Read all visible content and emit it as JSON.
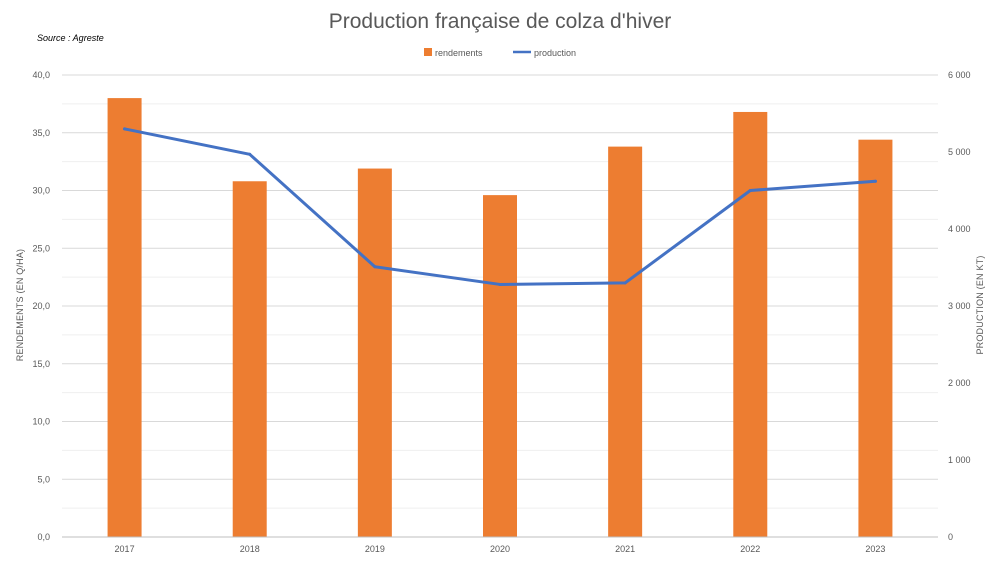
{
  "chart_data": {
    "type": "bar",
    "title": "Production française de colza d'hiver",
    "source_note": "Source : Agreste",
    "categories": [
      "2017",
      "2018",
      "2019",
      "2020",
      "2021",
      "2022",
      "2023"
    ],
    "series": [
      {
        "name": "rendements",
        "type": "bar",
        "axis": "left",
        "color": "#ED7D31",
        "values": [
          38.0,
          30.8,
          31.9,
          29.6,
          33.8,
          36.8,
          34.4
        ]
      },
      {
        "name": "production",
        "type": "line",
        "axis": "right",
        "color": "#4472C4",
        "values": [
          5300,
          4970,
          3510,
          3280,
          3300,
          4500,
          4620
        ]
      }
    ],
    "y_left": {
      "label": "RENDEMENTS (EN Q/HA)",
      "range": [
        0,
        40
      ],
      "ticks": [
        "0,0",
        "5,0",
        "10,0",
        "15,0",
        "20,0",
        "25,0",
        "30,0",
        "35,0",
        "40,0"
      ]
    },
    "y_right": {
      "label": "PRODUCTION (EN KT)",
      "range": [
        0,
        6000
      ],
      "ticks": [
        "0",
        "1 000",
        "2 000",
        "3 000",
        "4 000",
        "5 000",
        "6 000"
      ]
    },
    "grid": true,
    "legend_position": "top-center"
  }
}
